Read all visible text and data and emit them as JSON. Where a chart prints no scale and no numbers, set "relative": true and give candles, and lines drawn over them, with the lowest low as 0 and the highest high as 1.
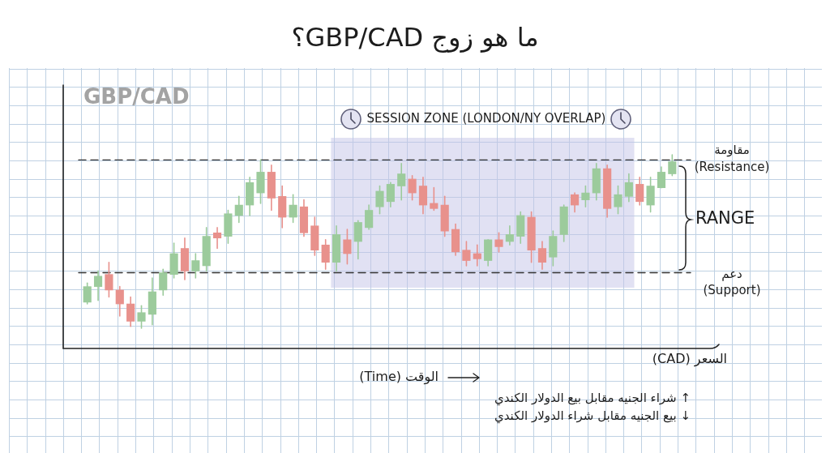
{
  "chart_data": {
    "type": "candlestick",
    "title": "ما هو زوج GBP/CAD؟",
    "xlabel": "الوقت (Time)",
    "relative": true,
    "tick_labels": false,
    "grid": true,
    "categories": [
      null,
      null,
      null,
      null,
      null,
      null,
      null,
      null,
      null,
      null,
      null,
      null,
      null,
      null,
      null,
      null,
      null,
      null,
      null,
      null,
      null,
      null,
      null,
      null,
      null,
      null,
      null,
      null,
      null,
      null,
      null,
      null,
      null,
      null,
      null,
      null,
      null,
      null,
      null,
      null,
      null,
      null,
      null,
      null,
      null,
      null,
      null,
      null,
      null,
      null,
      null,
      null,
      null,
      null,
      null
    ],
    "ohlc": [
      [
        0.15,
        0.26,
        0.14,
        0.24
      ],
      [
        0.24,
        0.33,
        0.16,
        0.3
      ],
      [
        0.31,
        0.38,
        0.18,
        0.22
      ],
      [
        0.22,
        0.24,
        0.07,
        0.14
      ],
      [
        0.14,
        0.18,
        0.01,
        0.04
      ],
      [
        0.04,
        0.13,
        0,
        0.09
      ],
      [
        0.08,
        0.29,
        0.02,
        0.21
      ],
      [
        0.22,
        0.34,
        0.19,
        0.32
      ],
      [
        0.31,
        0.49,
        0.29,
        0.43
      ],
      [
        0.46,
        0.52,
        0.28,
        0.33
      ],
      [
        0.33,
        0.43,
        0.29,
        0.39
      ],
      [
        0.36,
        0.58,
        0.33,
        0.53
      ],
      [
        0.55,
        0.58,
        0.46,
        0.52
      ],
      [
        0.53,
        0.68,
        0.49,
        0.66
      ],
      [
        0.65,
        0.76,
        0.61,
        0.71
      ],
      [
        0.71,
        0.87,
        0.65,
        0.84
      ],
      [
        0.78,
        0.97,
        0.72,
        0.9
      ],
      [
        0.9,
        0.94,
        0.68,
        0.75
      ],
      [
        0.76,
        0.82,
        0.58,
        0.64
      ],
      [
        0.64,
        0.77,
        0.61,
        0.71
      ],
      [
        0.7,
        0.74,
        0.53,
        0.55
      ],
      [
        0.59,
        0.64,
        0.42,
        0.45
      ],
      [
        0.48,
        0.51,
        0.34,
        0.38
      ],
      [
        0.38,
        0.59,
        0.33,
        0.54
      ],
      [
        0.51,
        0.57,
        0.37,
        0.43
      ],
      [
        0.5,
        0.62,
        0.4,
        0.61
      ],
      [
        0.58,
        0.71,
        0.57,
        0.68
      ],
      [
        0.7,
        0.82,
        0.66,
        0.79
      ],
      [
        0.73,
        0.84,
        0.7,
        0.83
      ],
      [
        0.82,
        0.95,
        0.74,
        0.89
      ],
      [
        0.86,
        0.88,
        0.74,
        0.78
      ],
      [
        0.82,
        0.87,
        0.66,
        0.71
      ],
      [
        0.72,
        0.81,
        0.68,
        0.69
      ],
      [
        0.71,
        0.76,
        0.53,
        0.56
      ],
      [
        0.57,
        0.6,
        0.42,
        0.44
      ],
      [
        0.45,
        0.5,
        0.36,
        0.39
      ],
      [
        0.43,
        0.48,
        0.36,
        0.4
      ],
      [
        0.39,
        0.51,
        0.36,
        0.51
      ],
      [
        0.51,
        0.55,
        0.44,
        0.47
      ],
      [
        0.5,
        0.59,
        0.48,
        0.54
      ],
      [
        0.53,
        0.67,
        0.49,
        0.65
      ],
      [
        0.64,
        0.67,
        0.38,
        0.45
      ],
      [
        0.46,
        0.5,
        0.34,
        0.38
      ],
      [
        0.41,
        0.56,
        0.36,
        0.53
      ],
      [
        0.54,
        0.71,
        0.5,
        0.7
      ],
      [
        0.77,
        0.78,
        0.67,
        0.71
      ],
      [
        0.74,
        0.82,
        0.7,
        0.78
      ],
      [
        0.78,
        0.95,
        0.74,
        0.92
      ],
      [
        0.92,
        0.94,
        0.64,
        0.69
      ],
      [
        0.7,
        0.82,
        0.66,
        0.77
      ],
      [
        0.76,
        0.89,
        0.73,
        0.84
      ],
      [
        0.83,
        0.87,
        0.71,
        0.73
      ],
      [
        0.71,
        0.87,
        0.67,
        0.82
      ],
      [
        0.81,
        0.93,
        0.81,
        0.9
      ],
      [
        0.89,
        1,
        0.88,
        0.96
      ]
    ],
    "colors": [
      "#9ccb9c",
      "#9ccb9c",
      "#e8918c",
      "#e8918c",
      "#e8918c",
      "#9ccb9c",
      "#9ccb9c",
      "#9ccb9c",
      "#9ccb9c",
      "#e8918c",
      "#9ccb9c",
      "#9ccb9c",
      "#e8918c",
      "#9ccb9c",
      "#9ccb9c",
      "#9ccb9c",
      "#9ccb9c",
      "#e8918c",
      "#e8918c",
      "#9ccb9c",
      "#e8918c",
      "#e8918c",
      "#e8918c",
      "#9ccb9c",
      "#e8918c",
      "#9ccb9c",
      "#9ccb9c",
      "#9ccb9c",
      "#9ccb9c",
      "#9ccb9c",
      "#e8918c",
      "#e8918c",
      "#e8918c",
      "#e8918c",
      "#e8918c",
      "#e8918c",
      "#e8918c",
      "#9ccb9c",
      "#e8918c",
      "#9ccb9c",
      "#9ccb9c",
      "#e8918c",
      "#e8918c",
      "#9ccb9c",
      "#9ccb9c",
      "#e8918c",
      "#9ccb9c",
      "#9ccb9c",
      "#e8918c",
      "#9ccb9c",
      "#9ccb9c",
      "#e8918c",
      "#9ccb9c",
      "#9ccb9c",
      "#9ccb9c"
    ],
    "ref_lines": [
      {
        "axis": "y",
        "value": 0.97,
        "label": "مقاومة\n(Resistance)",
        "color": "#333333",
        "line_style": "dashed"
      },
      {
        "axis": "y",
        "value": 0.32,
        "label": "دعم\n(Support)",
        "color": "#333333",
        "line_style": "dashed"
      }
    ],
    "annotations": [
      "GBP/CAD",
      "SESSION ZONE (LONDON/NY OVERLAP)",
      "RANGE",
      "السعر (CAD)",
      "↑ شراء الجنيه مقابل بيع الدولار الكندي",
      "↓ بيع الجنيه مقابل شراء الدولار الكندي"
    ]
  }
}
